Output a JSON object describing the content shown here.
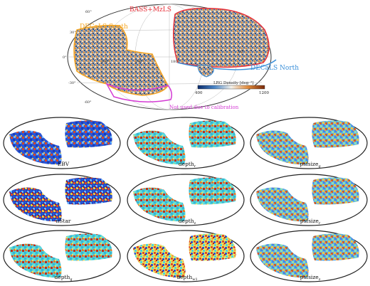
{
  "main_map": {
    "labels": {
      "bass": "BASS+MzLS",
      "decals_south": "DECaLS South",
      "decals_north": "DECaLS North",
      "not_used": "Not used due to calibration"
    },
    "dec_ticks": [
      "60°",
      "30°",
      "0°",
      "-30°",
      "-60°"
    ],
    "ra_ticks": [
      "300°",
      "240°",
      "180°",
      "120°",
      "60°"
    ],
    "colorbar": {
      "label": "LRG Density [deg⁻²]",
      "min": "400",
      "max": "1200"
    },
    "colors": {
      "bass": "#e8313a",
      "decals_south": "#f5a623",
      "decals_north": "#3a8fd9",
      "not_used": "#d43bd4"
    }
  },
  "small_maps": [
    {
      "label": "EBV",
      "pattern": "ebv"
    },
    {
      "label": "depth",
      "sub": "r",
      "pattern": "depth"
    },
    {
      "label": "psfsize",
      "sub": "g",
      "pattern": "noisy"
    },
    {
      "label": "nStar",
      "pattern": "nstar"
    },
    {
      "label": "depth",
      "sub": "z",
      "pattern": "depth"
    },
    {
      "label": "psfsize",
      "sub": "r",
      "pattern": "noisy"
    },
    {
      "label": "depth",
      "sub": "g",
      "pattern": "depth"
    },
    {
      "label": "depth",
      "sub": "w1",
      "pattern": "w1"
    },
    {
      "label": "psfsize",
      "sub": "z",
      "pattern": "noisy"
    }
  ]
}
